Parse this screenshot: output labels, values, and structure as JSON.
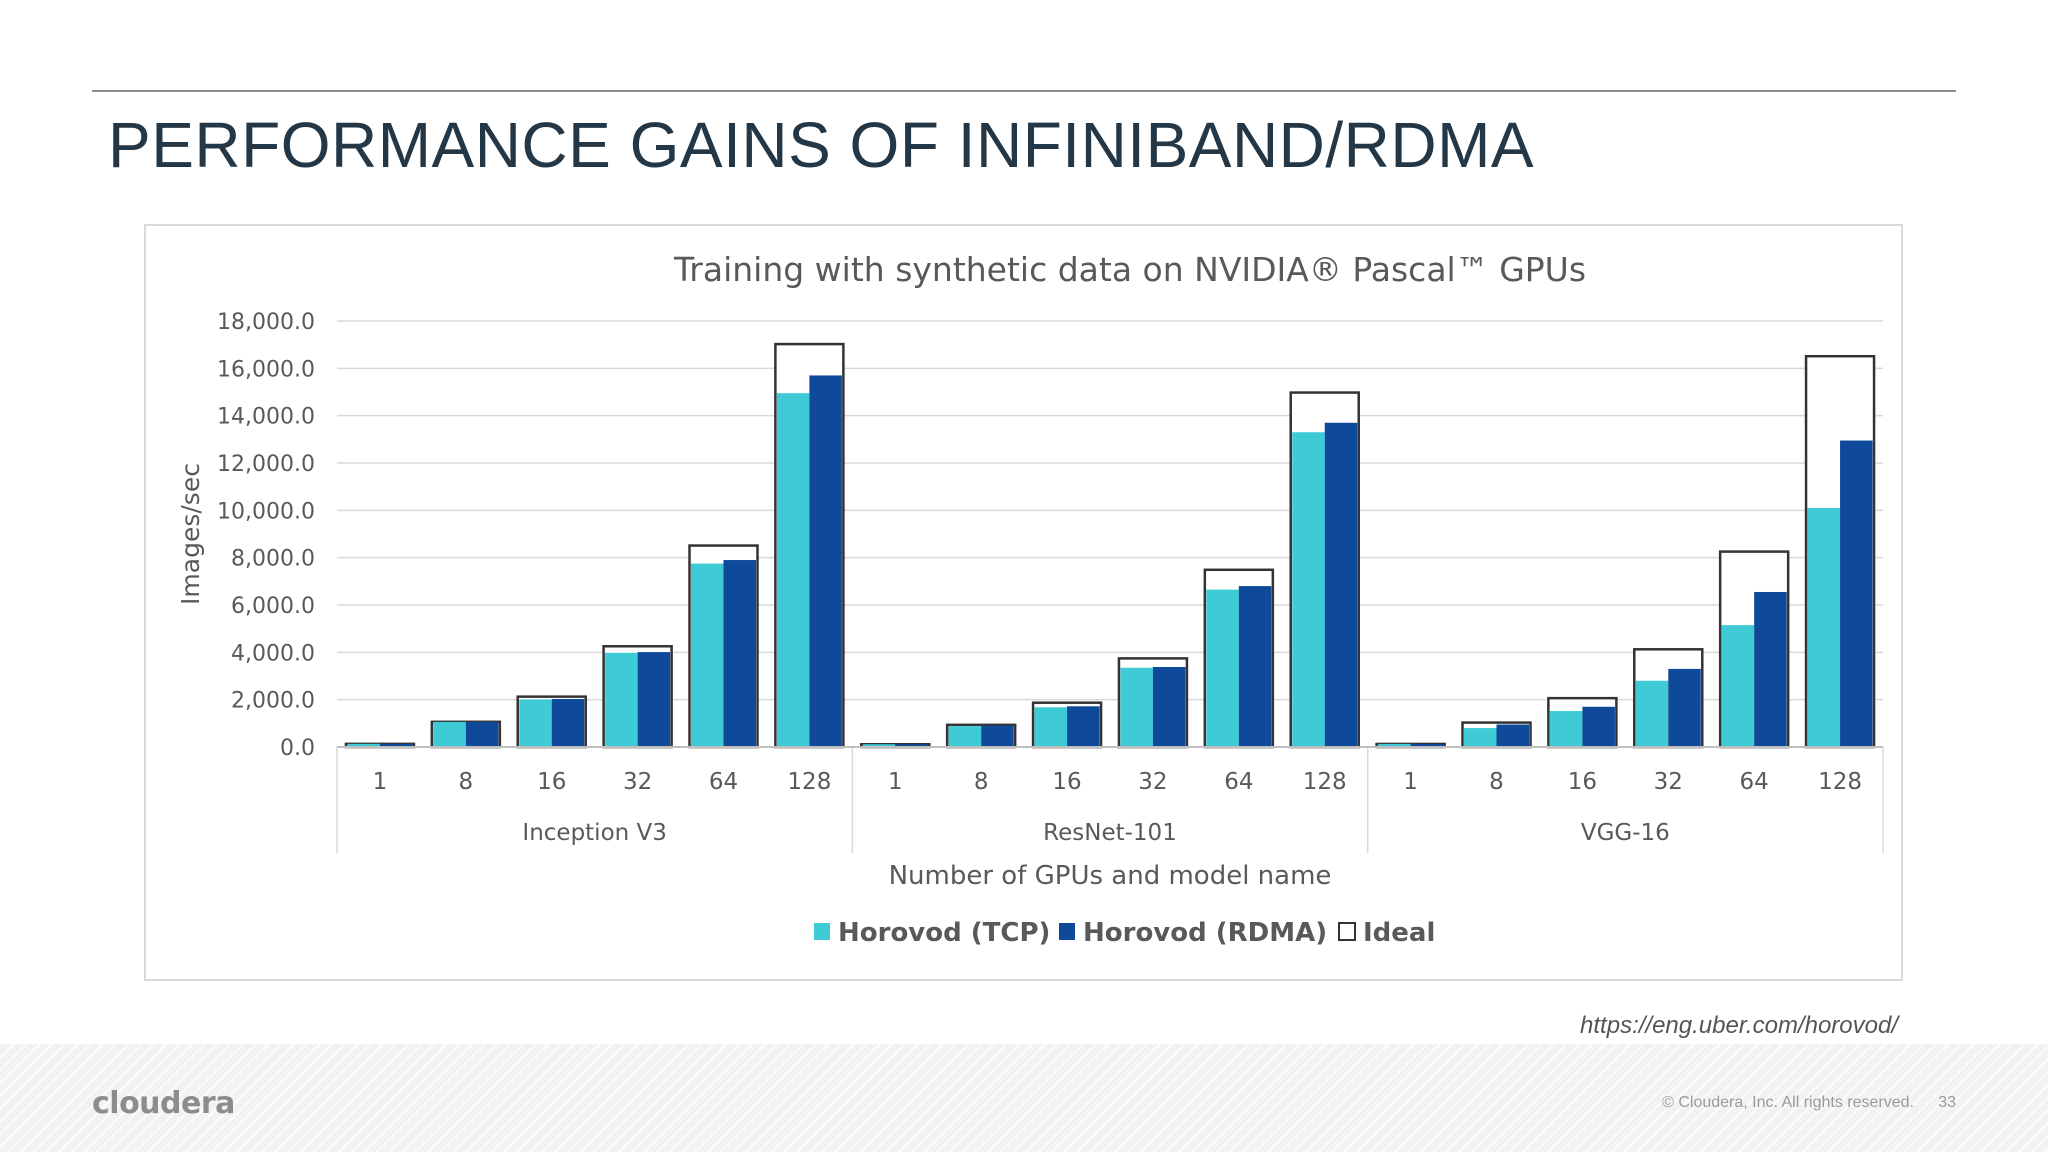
{
  "slide": {
    "title": "PERFORMANCE GAINS OF INFINIBAND/RDMA",
    "source": "https://eng.uber.com/horovod/",
    "logo": "cloudera",
    "copyright": "© Cloudera, Inc. All rights reserved.",
    "page_number": "33"
  },
  "colors": {
    "tcp": "#3ecbd6",
    "rdma": "#0f4a9a",
    "ideal_outline": "#333333",
    "grid": "#d9d9d9",
    "text": "#595959",
    "title_text": "#243746"
  },
  "chart_data": {
    "type": "bar",
    "title": "Training with synthetic data on NVIDIA® Pascal™ GPUs",
    "ylabel": "Images/sec",
    "xlabel": "Number of GPUs and model name",
    "ylim": [
      0,
      18000
    ],
    "yticks": [
      "0.0",
      "2,000.0",
      "4,000.0",
      "6,000.0",
      "8,000.0",
      "10,000.0",
      "12,000.0",
      "14,000.0",
      "16,000.0",
      "18,000.0"
    ],
    "ytick_values": [
      0,
      2000,
      4000,
      6000,
      8000,
      10000,
      12000,
      14000,
      16000,
      18000
    ],
    "gpu_counts": [
      "1",
      "8",
      "16",
      "32",
      "64",
      "128"
    ],
    "legend": [
      "Horovod (TCP)",
      "Horovod (RDMA)",
      "Ideal"
    ],
    "legend_position": "bottom",
    "groups": [
      {
        "name": "Inception V3",
        "tcp": [
          133,
          1060,
          2010,
          3980,
          7750,
          14950
        ],
        "rdma": [
          133,
          1060,
          2030,
          4010,
          7900,
          15700
        ],
        "ideal": [
          133,
          1064,
          2128,
          4256,
          8512,
          17024
        ]
      },
      {
        "name": "ResNet-101",
        "tcp": [
          117,
          880,
          1680,
          3350,
          6650,
          13300
        ],
        "rdma": [
          117,
          900,
          1720,
          3380,
          6800,
          13700
        ],
        "ideal": [
          117,
          936,
          1872,
          3744,
          7488,
          14976
        ]
      },
      {
        "name": "VGG-16",
        "tcp": [
          129,
          800,
          1520,
          2800,
          5150,
          10100
        ],
        "rdma": [
          129,
          950,
          1700,
          3300,
          6550,
          12950
        ],
        "ideal": [
          129,
          1032,
          2064,
          4128,
          8256,
          16512
        ]
      }
    ]
  }
}
